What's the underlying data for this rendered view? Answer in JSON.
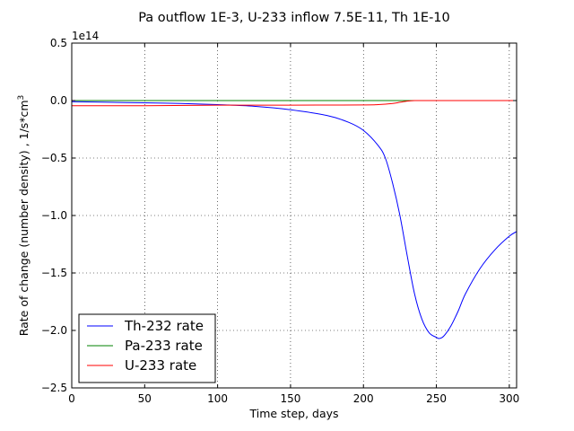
{
  "chart_data": {
    "type": "line",
    "title": "Pa outflow 1E-3, U-233 inflow 7.5E-11, Th 1E-10",
    "xlabel": "Time step, days",
    "ylabel": "Rate of change (number density) , 1/s*cm",
    "ylabel_superscript": "3",
    "y_offset_label": "1e14",
    "xlim": [
      0,
      305
    ],
    "ylim": [
      -2.5,
      0.5
    ],
    "y_scale_factor": "1e14",
    "x_ticks": [
      0,
      50,
      100,
      150,
      200,
      250,
      300
    ],
    "x_tick_labels": [
      "0",
      "50",
      "100",
      "150",
      "200",
      "250",
      "300"
    ],
    "y_ticks": [
      -2.5,
      -2.0,
      -1.5,
      -1.0,
      -0.5,
      0.0,
      0.5
    ],
    "y_tick_labels": [
      "−2.5",
      "−2.0",
      "−1.5",
      "−1.0",
      "−0.5",
      "0.0",
      "0.5"
    ],
    "grid": true,
    "legend_position": "lower-left",
    "series": [
      {
        "name": "Th-232 rate",
        "color": "#0000ff",
        "x": [
          0,
          25,
          50,
          75,
          100,
          125,
          150,
          175,
          190,
          200,
          210,
          215,
          220,
          225,
          230,
          235,
          240,
          245,
          250,
          252,
          255,
          260,
          265,
          270,
          280,
          290,
          300,
          305
        ],
        "y": [
          -0.01,
          -0.015,
          -0.02,
          -0.025,
          -0.035,
          -0.05,
          -0.08,
          -0.13,
          -0.19,
          -0.26,
          -0.39,
          -0.5,
          -0.72,
          -1.0,
          -1.35,
          -1.68,
          -1.9,
          -2.02,
          -2.06,
          -2.07,
          -2.05,
          -1.96,
          -1.83,
          -1.68,
          -1.46,
          -1.3,
          -1.18,
          -1.14
        ]
      },
      {
        "name": "Pa-233 rate",
        "color": "#008000",
        "x": [
          0,
          50,
          100,
          150,
          200,
          250,
          300,
          305
        ],
        "y": [
          0.0,
          0.0,
          0.0,
          0.0,
          0.0,
          0.0,
          0.0,
          0.0
        ]
      },
      {
        "name": "U-233 rate",
        "color": "#ff0000",
        "x": [
          0,
          50,
          100,
          150,
          200,
          210,
          220,
          225,
          230,
          235,
          240,
          250,
          300,
          305
        ],
        "y": [
          -0.045,
          -0.045,
          -0.04,
          -0.04,
          -0.038,
          -0.035,
          -0.025,
          -0.015,
          -0.005,
          0.0,
          0.0,
          0.0,
          0.0,
          0.0
        ]
      }
    ]
  }
}
